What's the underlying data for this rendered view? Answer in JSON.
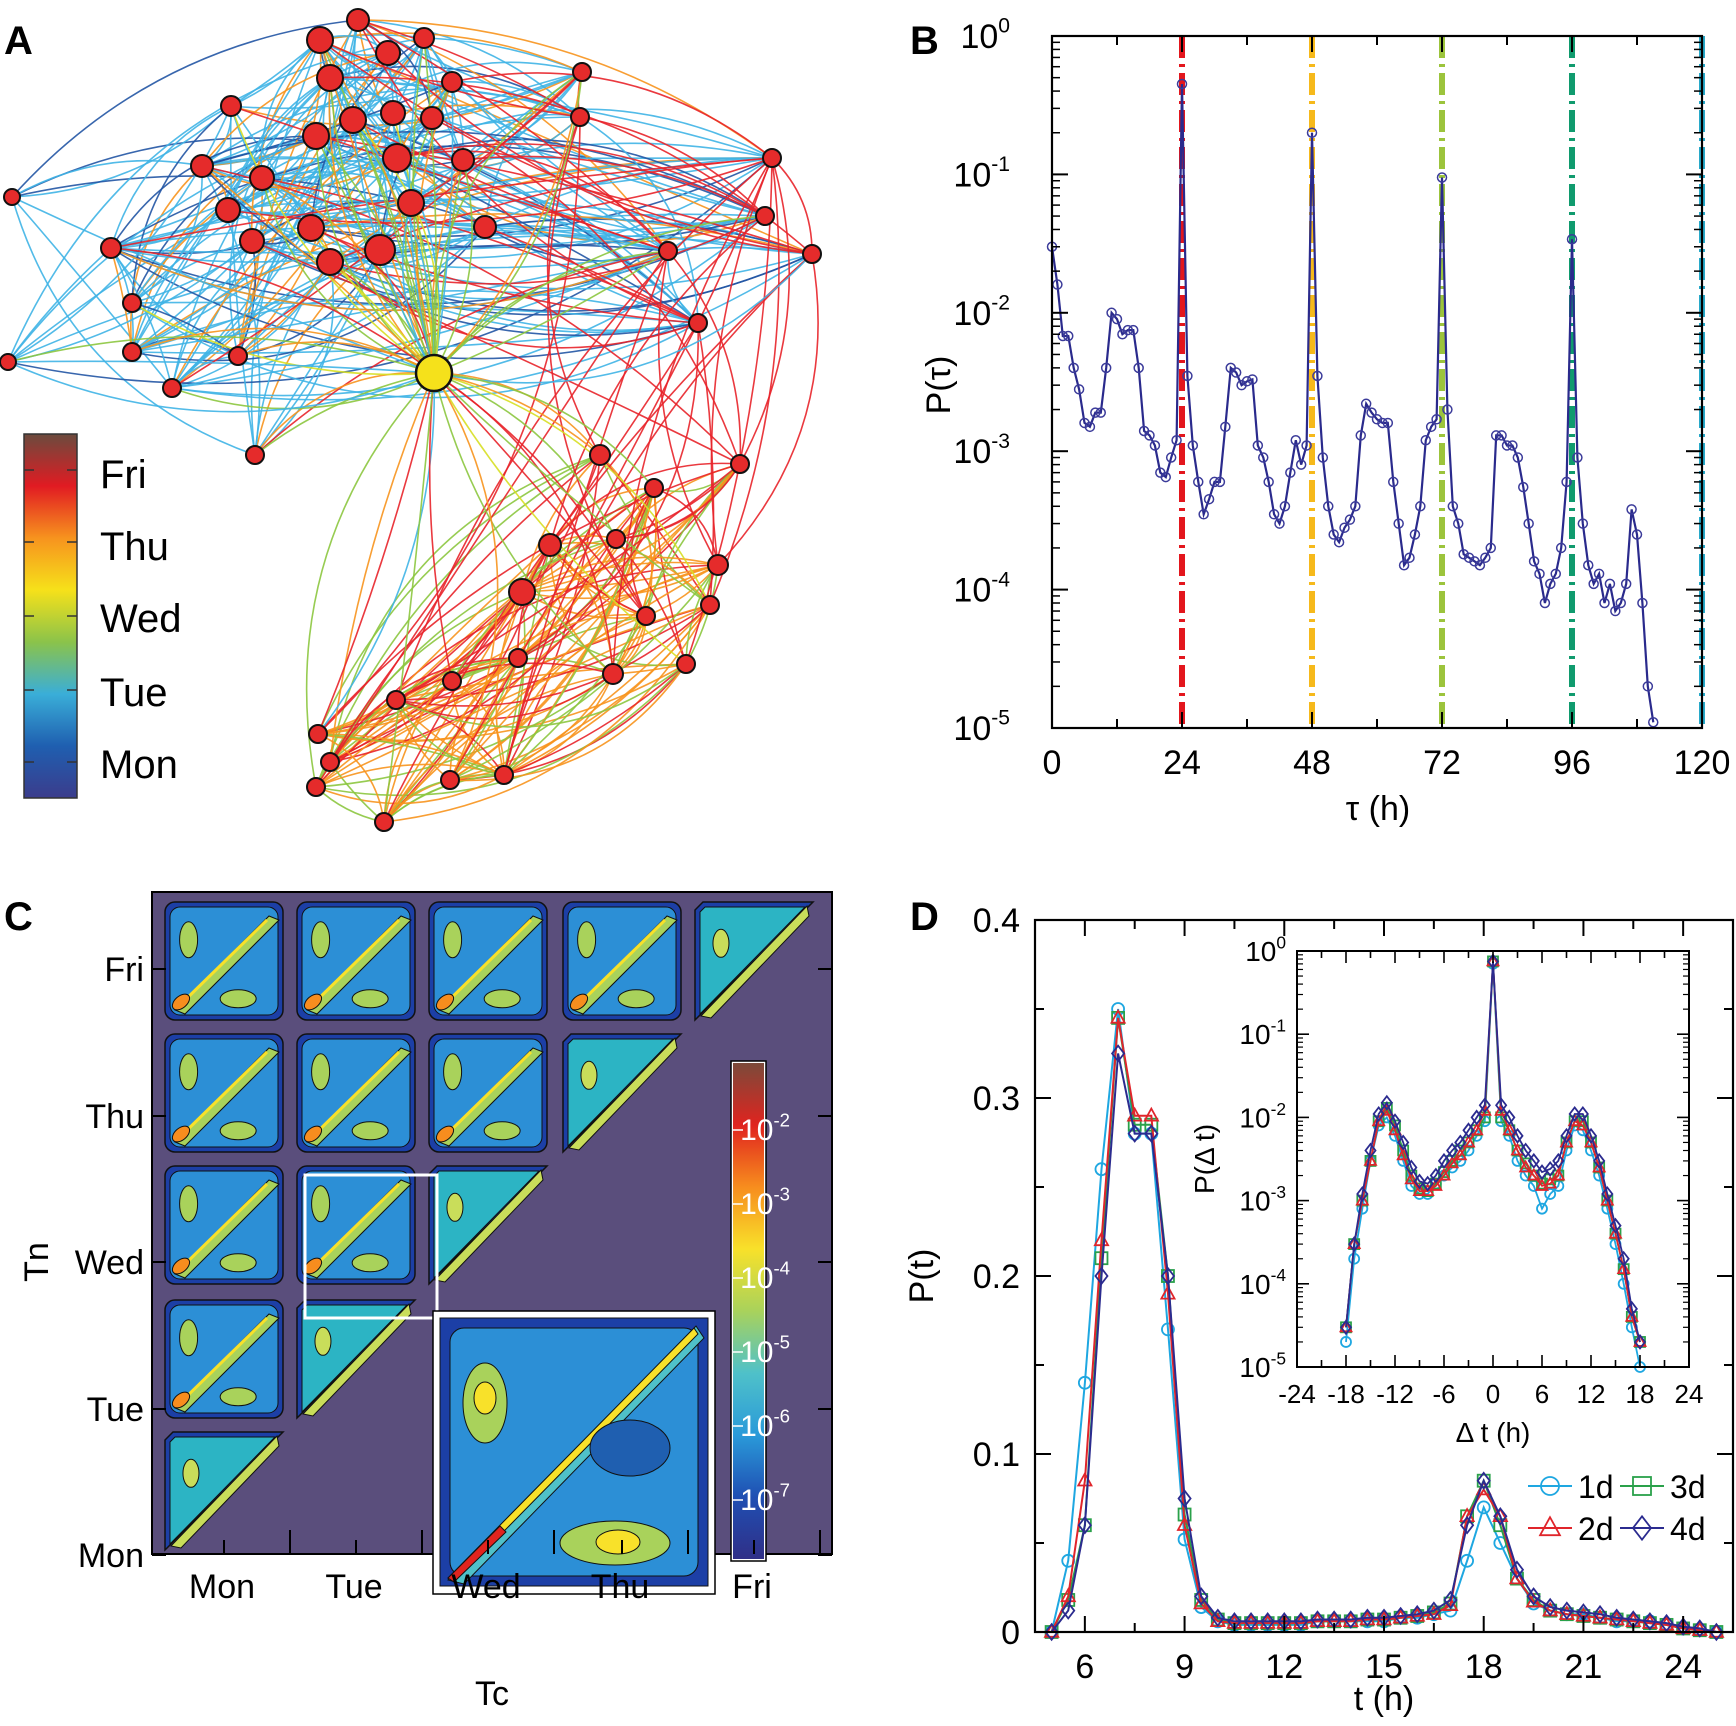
{
  "panels": {
    "A": {
      "letter": "A",
      "colorbar": {
        "labels": [
          "Fri",
          "Thu",
          "Wed",
          "Tue",
          "Mon"
        ],
        "colors": [
          "#6b4b3e",
          "#e11b22",
          "#f7931e",
          "#f6e11a",
          "#8bc34a",
          "#3aaed8",
          "#1f5fb0",
          "#3b3c8c"
        ]
      },
      "node_color": "#e52b2b",
      "hub_color": "#f5e11b",
      "edge_colors": [
        "#3fb4e6",
        "#2255a4",
        "#e8242a",
        "#f7941d",
        "#8cc63f",
        "#d7df23"
      ]
    },
    "B": {
      "letter": "B",
      "line_color": "#2a2a8c",
      "marker_color": "#3b3b9a"
    },
    "C": {
      "letter": "C",
      "background": "#5a4e7c",
      "colorbar_labels": [
        "10^-2",
        "10^-3",
        "10^-4",
        "10^-5",
        "10^-6",
        "10^-7"
      ],
      "colorbar_colors": [
        "#7b4a3a",
        "#e0241f",
        "#f78d1e",
        "#f8e12a",
        "#a9d25b",
        "#4fc1c9",
        "#2a9ad9",
        "#1f4fb3",
        "#302f87"
      ]
    },
    "D": {
      "letter": "D",
      "legend": [
        {
          "label": "1d",
          "color": "#1ea7e1",
          "marker": "circle"
        },
        {
          "label": "3d",
          "color": "#2aa14a",
          "marker": "square"
        },
        {
          "label": "2d",
          "color": "#e0252b",
          "marker": "triangle"
        },
        {
          "label": "4d",
          "color": "#2b2b8f",
          "marker": "diamond"
        }
      ]
    }
  },
  "chart_data": [
    {
      "panel": "B",
      "type": "line",
      "title": "",
      "xlabel": "τ (h)",
      "ylabel": "P(τ)",
      "xlim": [
        0,
        120
      ],
      "ylim_log10": [
        -5,
        0
      ],
      "xticks": [
        "0",
        "24",
        "48",
        "72",
        "96",
        "120"
      ],
      "yticks": [
        {
          "base": "10",
          "exp": "0"
        },
        {
          "base": "10",
          "exp": "-1"
        },
        {
          "base": "10",
          "exp": "-2"
        },
        {
          "base": "10",
          "exp": "-3"
        },
        {
          "base": "10",
          "exp": "-4"
        },
        {
          "base": "10",
          "exp": "-5"
        }
      ],
      "vlines": [
        {
          "x": 24,
          "color": "#e3161d"
        },
        {
          "x": 48,
          "color": "#f6b91b"
        },
        {
          "x": 72,
          "color": "#9cc43c"
        },
        {
          "x": 96,
          "color": "#109b6e"
        },
        {
          "x": 120,
          "color": "#28a9c9"
        }
      ],
      "x": [
        0,
        1,
        2,
        3,
        4,
        5,
        6,
        7,
        8,
        9,
        10,
        11,
        12,
        13,
        14,
        15,
        16,
        17,
        18,
        19,
        20,
        21,
        22,
        23,
        24,
        25,
        26,
        27,
        28,
        29,
        30,
        31,
        32,
        33,
        34,
        35,
        36,
        37,
        38,
        39,
        40,
        41,
        42,
        43,
        44,
        45,
        46,
        47,
        48,
        49,
        50,
        51,
        52,
        53,
        54,
        55,
        56,
        57,
        58,
        59,
        60,
        61,
        62,
        63,
        64,
        65,
        66,
        67,
        68,
        69,
        70,
        71,
        72,
        73,
        74,
        75,
        76,
        77,
        78,
        79,
        80,
        81,
        82,
        83,
        84,
        85,
        86,
        87,
        88,
        89,
        90,
        91,
        92,
        93,
        94,
        95,
        96,
        97,
        98,
        99,
        100,
        101,
        102,
        103,
        104,
        105,
        106,
        107,
        108,
        109,
        110,
        111
      ],
      "y": [
        0.03,
        0.016,
        0.0068,
        0.0068,
        0.004,
        0.0028,
        0.0016,
        0.0015,
        0.0019,
        0.0019,
        0.004,
        0.01,
        0.009,
        0.007,
        0.0075,
        0.0075,
        0.004,
        0.0014,
        0.0013,
        0.0011,
        0.0007,
        0.00065,
        0.0009,
        0.0012,
        0.45,
        0.0035,
        0.0011,
        0.0006,
        0.00035,
        0.00045,
        0.0006,
        0.0006,
        0.0015,
        0.004,
        0.0037,
        0.003,
        0.0032,
        0.0033,
        0.0011,
        0.0009,
        0.0006,
        0.00035,
        0.0003,
        0.0004,
        0.0007,
        0.0012,
        0.0008,
        0.0011,
        0.2,
        0.0035,
        0.0009,
        0.0004,
        0.00025,
        0.00022,
        0.00028,
        0.00032,
        0.0004,
        0.0013,
        0.0022,
        0.0019,
        0.0017,
        0.0016,
        0.0016,
        0.0006,
        0.0003,
        0.00015,
        0.00017,
        0.00025,
        0.0004,
        0.0012,
        0.0015,
        0.0017,
        0.095,
        0.002,
        0.0004,
        0.0003,
        0.00018,
        0.00017,
        0.00016,
        0.00015,
        0.00017,
        0.0002,
        0.0013,
        0.0013,
        0.0011,
        0.0011,
        0.0009,
        0.00055,
        0.0003,
        0.00016,
        0.00013,
        8e-05,
        0.00011,
        0.00013,
        0.0002,
        0.0006,
        0.034,
        0.0009,
        0.0003,
        0.00015,
        0.00011,
        0.00013,
        8e-05,
        0.00011,
        7e-05,
        8e-05,
        0.00011,
        0.00038,
        0.00025,
        8e-05,
        2e-05,
        1.1e-05
      ]
    },
    {
      "panel": "C",
      "type": "heatmap",
      "xlabel": "Tc",
      "ylabel": "Tn",
      "xticks": [
        "Mon",
        "Tue",
        "Wed",
        "Thu",
        "Fri"
      ],
      "yticks": [
        "Fri",
        "Thu",
        "Wed",
        "Tue",
        "Mon"
      ],
      "grid": "lower-triangular day blocks"
    },
    {
      "panel": "D",
      "type": "line",
      "xlabel": "t (h)",
      "ylabel": "P(t)",
      "xlim": [
        4.5,
        25.5
      ],
      "ylim": [
        0,
        0.4
      ],
      "xticks": [
        "6",
        "9",
        "12",
        "15",
        "18",
        "21",
        "24"
      ],
      "yticks": [
        "0",
        "0.1",
        "0.2",
        "0.3",
        "0.4"
      ],
      "x": [
        5,
        5.5,
        6,
        6.5,
        7,
        7.5,
        8,
        8.5,
        9,
        9.5,
        10,
        10.5,
        11,
        11.5,
        12,
        12.5,
        13,
        13.5,
        14,
        14.5,
        15,
        15.5,
        16,
        16.5,
        17,
        17.5,
        18,
        18.5,
        19,
        19.5,
        20,
        20.5,
        21,
        21.5,
        22,
        22.5,
        23,
        23.5,
        24,
        24.5,
        25
      ],
      "series": [
        {
          "name": "1d",
          "values": [
            0,
            0.04,
            0.14,
            0.26,
            0.35,
            0.28,
            0.28,
            0.17,
            0.052,
            0.014,
            0.006,
            0.004,
            0.004,
            0.004,
            0.004,
            0.004,
            0.006,
            0.006,
            0.006,
            0.006,
            0.006,
            0.008,
            0.008,
            0.01,
            0.012,
            0.04,
            0.07,
            0.05,
            0.03,
            0.016,
            0.012,
            0.01,
            0.01,
            0.008,
            0.006,
            0.006,
            0.006,
            0.004,
            0.002,
            0.001,
            0
          ]
        },
        {
          "name": "3d",
          "values": [
            0,
            0.018,
            0.06,
            0.21,
            0.345,
            0.285,
            0.285,
            0.2,
            0.066,
            0.018,
            0.007,
            0.005,
            0.005,
            0.005,
            0.005,
            0.005,
            0.006,
            0.006,
            0.006,
            0.007,
            0.007,
            0.008,
            0.009,
            0.011,
            0.016,
            0.065,
            0.085,
            0.06,
            0.03,
            0.018,
            0.012,
            0.01,
            0.009,
            0.008,
            0.007,
            0.006,
            0.005,
            0.004,
            0.002,
            0.001,
            0
          ]
        },
        {
          "name": "2d",
          "values": [
            0,
            0.02,
            0.085,
            0.22,
            0.345,
            0.29,
            0.29,
            0.19,
            0.06,
            0.016,
            0.006,
            0.005,
            0.005,
            0.005,
            0.005,
            0.005,
            0.006,
            0.006,
            0.006,
            0.007,
            0.007,
            0.008,
            0.009,
            0.01,
            0.015,
            0.065,
            0.08,
            0.065,
            0.03,
            0.017,
            0.012,
            0.01,
            0.009,
            0.008,
            0.007,
            0.006,
            0.005,
            0.004,
            0.002,
            0.001,
            0
          ]
        },
        {
          "name": "4d",
          "values": [
            0,
            0.012,
            0.06,
            0.2,
            0.325,
            0.28,
            0.28,
            0.2,
            0.075,
            0.02,
            0.008,
            0.006,
            0.006,
            0.006,
            0.006,
            0.006,
            0.007,
            0.007,
            0.007,
            0.008,
            0.008,
            0.009,
            0.01,
            0.012,
            0.018,
            0.06,
            0.085,
            0.065,
            0.035,
            0.02,
            0.014,
            0.012,
            0.011,
            0.01,
            0.008,
            0.007,
            0.006,
            0.005,
            0.003,
            0.002,
            0
          ]
        }
      ],
      "inset": {
        "xlabel": "Δ t (h)",
        "ylabel": "P(Δ t)",
        "xlim": [
          -24,
          24
        ],
        "ylim_log10": [
          -5,
          0
        ],
        "xticks": [
          "-24",
          "-18",
          "-12",
          "-6",
          "0",
          "6",
          "12",
          "18",
          "24"
        ],
        "yticks": [
          {
            "base": "10",
            "exp": "0"
          },
          {
            "base": "10",
            "exp": "-1"
          },
          {
            "base": "10",
            "exp": "-2"
          },
          {
            "base": "10",
            "exp": "-3"
          },
          {
            "base": "10",
            "exp": "-4"
          },
          {
            "base": "10",
            "exp": "-5"
          }
        ],
        "x": [
          -18,
          -17,
          -16,
          -15,
          -14,
          -13,
          -12,
          -11,
          -10,
          -9,
          -8,
          -7,
          -6,
          -5,
          -4,
          -3,
          -2,
          -1,
          0,
          1,
          2,
          3,
          4,
          5,
          6,
          7,
          8,
          9,
          10,
          11,
          12,
          13,
          14,
          15,
          16,
          17,
          18
        ],
        "series": [
          {
            "name": "1d",
            "values": [
              2e-05,
              0.0002,
              0.0008,
              0.003,
              0.008,
              0.01,
              0.006,
              0.003,
              0.0015,
              0.0012,
              0.0012,
              0.0016,
              0.002,
              0.0025,
              0.003,
              0.004,
              0.006,
              0.009,
              0.7,
              0.009,
              0.006,
              0.003,
              0.002,
              0.0015,
              0.0008,
              0.0012,
              0.0015,
              0.004,
              0.008,
              0.007,
              0.004,
              0.002,
              0.0008,
              0.0003,
              0.0001,
              3e-05,
              1e-05
            ]
          },
          {
            "name": "3d",
            "values": [
              3e-05,
              0.0003,
              0.001,
              0.003,
              0.009,
              0.013,
              0.008,
              0.004,
              0.002,
              0.0014,
              0.0013,
              0.0016,
              0.0022,
              0.003,
              0.004,
              0.005,
              0.007,
              0.01,
              0.75,
              0.01,
              0.007,
              0.004,
              0.0028,
              0.002,
              0.0016,
              0.0018,
              0.002,
              0.005,
              0.009,
              0.009,
              0.005,
              0.0025,
              0.001,
              0.0004,
              0.00015,
              4e-05,
              2e-05
            ]
          },
          {
            "name": "2d",
            "values": [
              3e-05,
              0.0003,
              0.001,
              0.003,
              0.009,
              0.012,
              0.007,
              0.0035,
              0.0018,
              0.0013,
              0.0013,
              0.0015,
              0.002,
              0.0028,
              0.0035,
              0.005,
              0.007,
              0.012,
              0.75,
              0.012,
              0.007,
              0.004,
              0.0025,
              0.002,
              0.0015,
              0.0016,
              0.002,
              0.005,
              0.009,
              0.008,
              0.005,
              0.0025,
              0.001,
              0.0004,
              0.00015,
              4e-05,
              2e-05
            ]
          },
          {
            "name": "4d",
            "values": [
              3e-05,
              0.0003,
              0.0012,
              0.004,
              0.011,
              0.015,
              0.009,
              0.005,
              0.0025,
              0.0017,
              0.0016,
              0.002,
              0.003,
              0.004,
              0.005,
              0.007,
              0.01,
              0.014,
              0.75,
              0.014,
              0.01,
              0.006,
              0.004,
              0.003,
              0.0022,
              0.0024,
              0.003,
              0.006,
              0.011,
              0.011,
              0.006,
              0.003,
              0.0012,
              0.0005,
              0.0002,
              5e-05,
              2e-05
            ]
          }
        ]
      }
    }
  ]
}
